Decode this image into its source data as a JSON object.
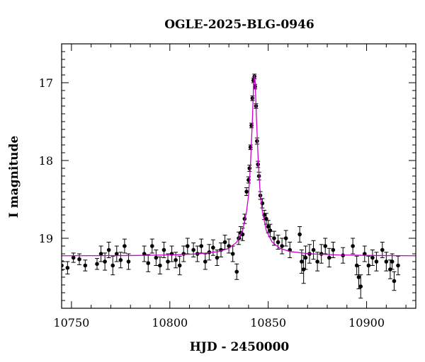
{
  "chart_data": {
    "type": "scatter",
    "title": "OGLE-2025-BLG-0946",
    "xlabel": "HJD - 2450000",
    "ylabel": "I magnitude",
    "xlim": [
      10745,
      10925
    ],
    "ylim": [
      19.9,
      16.5
    ],
    "y_inverted": true,
    "x_ticks": [
      10750,
      10800,
      10850,
      10900
    ],
    "x_tick_labels": [
      "10750",
      "10800",
      "10850",
      "10900"
    ],
    "y_ticks": [
      17,
      18,
      19
    ],
    "y_tick_labels": [
      "17",
      "18",
      "19"
    ],
    "grid": false,
    "legend": "none",
    "colors": {
      "points": "#000000",
      "model": "#cc00cc"
    },
    "series": [
      {
        "kind": "points_with_errorbars",
        "points": [
          [
            10745,
            19.35,
            0.06
          ],
          [
            10748,
            19.38,
            0.08
          ],
          [
            10751,
            19.25,
            0.06
          ],
          [
            10754,
            19.27,
            0.07
          ],
          [
            10757,
            19.35,
            0.07
          ],
          [
            10763,
            19.33,
            0.07
          ],
          [
            10765,
            19.2,
            0.1
          ],
          [
            10767,
            19.3,
            0.11
          ],
          [
            10769,
            19.15,
            0.1
          ],
          [
            10771,
            19.35,
            0.12
          ],
          [
            10773,
            19.2,
            0.1
          ],
          [
            10775,
            19.28,
            0.1
          ],
          [
            10777,
            19.1,
            0.09
          ],
          [
            10779,
            19.3,
            0.1
          ],
          [
            10787,
            19.2,
            0.1
          ],
          [
            10789,
            19.32,
            0.11
          ],
          [
            10791,
            19.1,
            0.09
          ],
          [
            10793,
            19.25,
            0.1
          ],
          [
            10795,
            19.35,
            0.11
          ],
          [
            10797,
            19.15,
            0.1
          ],
          [
            10799,
            19.3,
            0.1
          ],
          [
            10801,
            19.2,
            0.1
          ],
          [
            10803,
            19.28,
            0.1
          ],
          [
            10805,
            19.35,
            0.12
          ],
          [
            10807,
            19.2,
            0.1
          ],
          [
            10809,
            19.1,
            0.1
          ],
          [
            10812,
            19.15,
            0.09
          ],
          [
            10814,
            19.2,
            0.1
          ],
          [
            10816,
            19.1,
            0.09
          ],
          [
            10818,
            19.3,
            0.1
          ],
          [
            10820,
            19.18,
            0.1
          ],
          [
            10822,
            19.12,
            0.1
          ],
          [
            10824,
            19.25,
            0.1
          ],
          [
            10826,
            19.15,
            0.09
          ],
          [
            10828,
            19.05,
            0.09
          ],
          [
            10830,
            19.1,
            0.09
          ],
          [
            10832,
            19.2,
            0.1
          ],
          [
            10834,
            19.43,
            0.1
          ],
          [
            10835,
            19.0,
            0.08
          ],
          [
            10836,
            18.93,
            0.08
          ],
          [
            10837,
            18.95,
            0.08
          ],
          [
            10838,
            18.75,
            0.06
          ],
          [
            10839,
            18.4,
            0.05
          ],
          [
            10840,
            18.25,
            0.04
          ],
          [
            10840.5,
            18.1,
            0.04
          ],
          [
            10841,
            17.83,
            0.03
          ],
          [
            10841.5,
            17.55,
            0.03
          ],
          [
            10842,
            17.2,
            0.03
          ],
          [
            10842.5,
            16.97,
            0.03
          ],
          [
            10843,
            16.92,
            0.03
          ],
          [
            10843.3,
            17.05,
            0.03
          ],
          [
            10843.8,
            17.3,
            0.03
          ],
          [
            10844.3,
            17.75,
            0.04
          ],
          [
            10844.8,
            18.05,
            0.04
          ],
          [
            10845.3,
            18.2,
            0.05
          ],
          [
            10846,
            18.45,
            0.05
          ],
          [
            10847,
            18.55,
            0.06
          ],
          [
            10848,
            18.7,
            0.06
          ],
          [
            10849,
            18.75,
            0.07
          ],
          [
            10850,
            18.85,
            0.08
          ],
          [
            10851,
            18.9,
            0.08
          ],
          [
            10853,
            19.0,
            0.09
          ],
          [
            10855,
            19.05,
            0.09
          ],
          [
            10857,
            19.1,
            0.1
          ],
          [
            10859,
            19.0,
            0.1
          ],
          [
            10861,
            19.15,
            0.1
          ],
          [
            10866,
            18.95,
            0.1
          ],
          [
            10867,
            19.3,
            0.15
          ],
          [
            10868,
            19.4,
            0.18
          ],
          [
            10869,
            19.25,
            0.15
          ],
          [
            10871,
            19.2,
            0.12
          ],
          [
            10873,
            19.15,
            0.12
          ],
          [
            10875,
            19.3,
            0.12
          ],
          [
            10877,
            19.2,
            0.12
          ],
          [
            10879,
            19.1,
            0.1
          ],
          [
            10881,
            19.25,
            0.12
          ],
          [
            10883,
            19.15,
            0.1
          ],
          [
            10888,
            19.22,
            0.1
          ],
          [
            10893,
            19.1,
            0.1
          ],
          [
            10895,
            19.35,
            0.12
          ],
          [
            10896,
            19.5,
            0.15
          ],
          [
            10897,
            19.62,
            0.15
          ],
          [
            10899,
            19.2,
            0.1
          ],
          [
            10901,
            19.35,
            0.12
          ],
          [
            10903,
            19.25,
            0.1
          ],
          [
            10905,
            19.3,
            0.12
          ],
          [
            10908,
            19.15,
            0.1
          ],
          [
            10910,
            19.3,
            0.12
          ],
          [
            10912,
            19.4,
            0.12
          ],
          [
            10913,
            19.3,
            0.1
          ],
          [
            10914,
            19.55,
            0.12
          ],
          [
            10916,
            19.35,
            0.12
          ]
        ]
      },
      {
        "kind": "model_curve",
        "model": {
          "t0": 10843.0,
          "baseline_mag": 19.23,
          "samples": [
            [
              10745,
              19.225
            ],
            [
              10780,
              19.222
            ],
            [
              10800,
              19.215
            ],
            [
              10815,
              19.2
            ],
            [
              10825,
              19.17
            ],
            [
              10830,
              19.13
            ],
            [
              10834,
              19.05
            ],
            [
              10837,
              18.9
            ],
            [
              10839,
              18.65
            ],
            [
              10840,
              18.45
            ],
            [
              10841,
              18.05
            ],
            [
              10842,
              17.45
            ],
            [
              10842.6,
              17.0
            ],
            [
              10843,
              16.9
            ],
            [
              10843.4,
              17.0
            ],
            [
              10844,
              17.45
            ],
            [
              10845,
              18.05
            ],
            [
              10846,
              18.45
            ],
            [
              10847,
              18.65
            ],
            [
              10849,
              18.9
            ],
            [
              10852,
              19.05
            ],
            [
              10856,
              19.13
            ],
            [
              10861,
              19.17
            ],
            [
              10871,
              19.2
            ],
            [
              10886,
              19.215
            ],
            [
              10906,
              19.222
            ],
            [
              10925,
              19.225
            ]
          ]
        }
      }
    ]
  }
}
